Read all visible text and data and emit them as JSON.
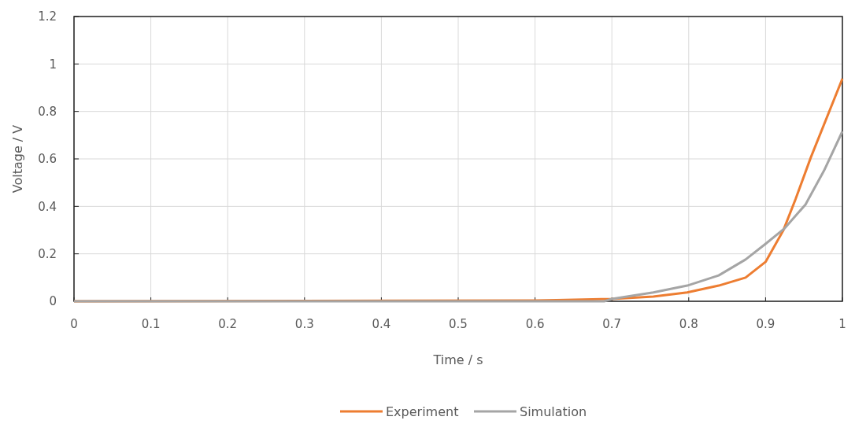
{
  "chart_data": {
    "type": "line",
    "xlabel": "Time / s",
    "ylabel": "Voltage / V",
    "xlim": [
      0,
      1
    ],
    "xticks": [
      0,
      0.1,
      0.2,
      0.3,
      0.4,
      0.5,
      0.6,
      0.7,
      0.8,
      0.9,
      1
    ],
    "ylim": [
      0,
      1.2
    ],
    "yticks": [
      0,
      0.2,
      0.4,
      0.6,
      0.8,
      1,
      1.2
    ],
    "grid": true,
    "legend": "bottom",
    "marker": "none",
    "line_style": "solid",
    "series": [
      {
        "name": "Experiment",
        "color": "#ed7d31",
        "x": [
          0,
          0.6,
          0.628,
          0.7,
          0.754,
          0.798,
          0.839,
          0.874,
          0.9,
          0.923,
          0.939,
          0.959,
          1
        ],
        "values": [
          0,
          0.003,
          0.005,
          0.01,
          0.02,
          0.037,
          0.066,
          0.1,
          0.166,
          0.298,
          0.43,
          0.607,
          0.938
        ]
      },
      {
        "name": "Simulation",
        "color": "#a5a5a5",
        "x": [
          0,
          0.69,
          0.7,
          0.754,
          0.798,
          0.839,
          0.874,
          0.9,
          0.925,
          0.952,
          0.976,
          1
        ],
        "values": [
          0,
          0,
          0.01,
          0.037,
          0.066,
          0.109,
          0.176,
          0.242,
          0.308,
          0.408,
          0.55,
          0.716
        ]
      }
    ]
  }
}
